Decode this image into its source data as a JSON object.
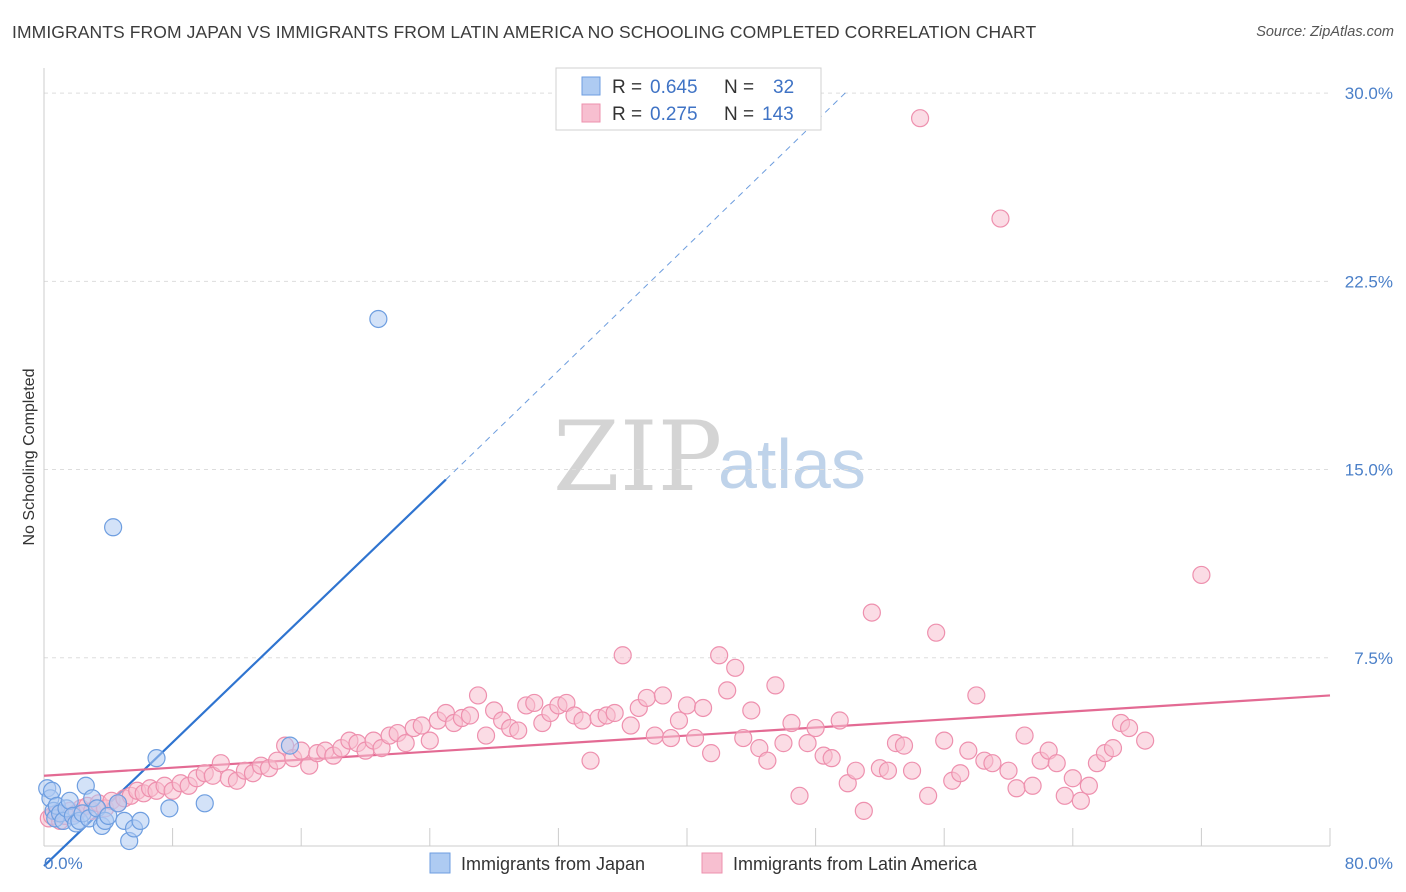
{
  "header": {
    "title": "IMMIGRANTS FROM JAPAN VS IMMIGRANTS FROM LATIN AMERICA NO SCHOOLING COMPLETED CORRELATION CHART",
    "source": "Source: ZipAtlas.com"
  },
  "colors": {
    "japan_fill": "#aecbf2",
    "japan_stroke": "#6e9ee0",
    "japan_line": "#2f74d0",
    "latam_fill": "#f7bfd0",
    "latam_stroke": "#ee90ae",
    "latam_line": "#e36a93",
    "tick_text": "#4a7fc8",
    "grid": "#dddddd"
  },
  "legend": {
    "rows": [
      {
        "r_label": "R =",
        "r_value": "0.645",
        "n_label": "N =",
        "n_value": "32"
      },
      {
        "r_label": "R =",
        "r_value": "0.275",
        "n_label": "N =",
        "n_value": "143"
      }
    ]
  },
  "watermark": {
    "zip": "ZIP",
    "atlas": "atlas"
  },
  "bottom_legend": [
    "Immigrants from Japan",
    "Immigrants from Latin America"
  ],
  "chart_data": {
    "type": "scatter",
    "title": "IMMIGRANTS FROM JAPAN VS IMMIGRANTS FROM LATIN AMERICA NO SCHOOLING COMPLETED CORRELATION CHART",
    "xlabel": "",
    "ylabel": "No Schooling Completed",
    "xlim": [
      0,
      80
    ],
    "ylim": [
      0,
      31
    ],
    "x_tick_labels": [
      "0.0%",
      "80.0%"
    ],
    "y_ticks": [
      7.5,
      15.0,
      22.5,
      30.0
    ],
    "y_tick_labels": [
      "7.5%",
      "15.0%",
      "22.5%",
      "30.0%"
    ],
    "series": [
      {
        "name": "Immigrants from Japan",
        "R": 0.645,
        "N": 32,
        "trend": {
          "x0": 0,
          "y0": -0.8,
          "x1": 25,
          "y1": 14.6,
          "dash_x1": 50,
          "dash_y1": 30.1
        },
        "points": [
          [
            0.2,
            2.3
          ],
          [
            0.4,
            1.9
          ],
          [
            0.5,
            2.2
          ],
          [
            0.6,
            1.4
          ],
          [
            0.7,
            1.1
          ],
          [
            0.8,
            1.6
          ],
          [
            1.0,
            1.3
          ],
          [
            1.2,
            1.0
          ],
          [
            1.4,
            1.5
          ],
          [
            1.6,
            1.8
          ],
          [
            1.8,
            1.2
          ],
          [
            2.0,
            0.9
          ],
          [
            2.2,
            1.0
          ],
          [
            2.4,
            1.3
          ],
          [
            2.6,
            2.4
          ],
          [
            2.8,
            1.1
          ],
          [
            3.0,
            1.9
          ],
          [
            3.3,
            1.5
          ],
          [
            3.6,
            0.8
          ],
          [
            3.8,
            1.0
          ],
          [
            4.0,
            1.2
          ],
          [
            4.3,
            12.7
          ],
          [
            4.6,
            1.7
          ],
          [
            5.0,
            1.0
          ],
          [
            5.3,
            0.2
          ],
          [
            5.6,
            0.7
          ],
          [
            6.0,
            1.0
          ],
          [
            7.0,
            3.5
          ],
          [
            7.8,
            1.5
          ],
          [
            10.0,
            1.7
          ],
          [
            15.3,
            4.0
          ],
          [
            20.8,
            21.0
          ]
        ]
      },
      {
        "name": "Immigrants from Latin America",
        "R": 0.275,
        "N": 143,
        "trend": {
          "x0": 0,
          "y0": 2.8,
          "x1": 80,
          "y1": 6.0
        },
        "points": [
          [
            0.3,
            1.1
          ],
          [
            0.5,
            1.2
          ],
          [
            0.8,
            1.3
          ],
          [
            1.0,
            1.0
          ],
          [
            1.3,
            1.2
          ],
          [
            1.6,
            1.4
          ],
          [
            2.0,
            1.3
          ],
          [
            2.3,
            1.5
          ],
          [
            2.7,
            1.6
          ],
          [
            3.0,
            1.4
          ],
          [
            3.4,
            1.7
          ],
          [
            3.8,
            1.5
          ],
          [
            4.2,
            1.8
          ],
          [
            4.6,
            1.7
          ],
          [
            5.0,
            1.9
          ],
          [
            5.4,
            2.0
          ],
          [
            5.8,
            2.2
          ],
          [
            6.2,
            2.1
          ],
          [
            6.6,
            2.3
          ],
          [
            7.0,
            2.2
          ],
          [
            7.5,
            2.4
          ],
          [
            8.0,
            2.2
          ],
          [
            8.5,
            2.5
          ],
          [
            9.0,
            2.4
          ],
          [
            9.5,
            2.7
          ],
          [
            10.0,
            2.9
          ],
          [
            10.5,
            2.8
          ],
          [
            11.0,
            3.3
          ],
          [
            11.5,
            2.7
          ],
          [
            12.0,
            2.6
          ],
          [
            12.5,
            3.0
          ],
          [
            13.0,
            2.9
          ],
          [
            13.5,
            3.2
          ],
          [
            14.0,
            3.1
          ],
          [
            14.5,
            3.4
          ],
          [
            15.0,
            4.0
          ],
          [
            15.5,
            3.5
          ],
          [
            16.0,
            3.8
          ],
          [
            16.5,
            3.2
          ],
          [
            17.0,
            3.7
          ],
          [
            17.5,
            3.8
          ],
          [
            18.0,
            3.6
          ],
          [
            18.5,
            3.9
          ],
          [
            19.0,
            4.2
          ],
          [
            19.5,
            4.1
          ],
          [
            20.0,
            3.8
          ],
          [
            20.5,
            4.2
          ],
          [
            21.0,
            3.9
          ],
          [
            21.5,
            4.4
          ],
          [
            22.0,
            4.5
          ],
          [
            22.5,
            4.1
          ],
          [
            23.0,
            4.7
          ],
          [
            23.5,
            4.8
          ],
          [
            24.0,
            4.2
          ],
          [
            24.5,
            5.0
          ],
          [
            25.0,
            5.3
          ],
          [
            25.5,
            4.9
          ],
          [
            26.0,
            5.1
          ],
          [
            26.5,
            5.2
          ],
          [
            27.0,
            6.0
          ],
          [
            27.5,
            4.4
          ],
          [
            28.0,
            5.4
          ],
          [
            28.5,
            5.0
          ],
          [
            29.0,
            4.7
          ],
          [
            29.5,
            4.6
          ],
          [
            30.0,
            5.6
          ],
          [
            30.5,
            5.7
          ],
          [
            31.0,
            4.9
          ],
          [
            31.5,
            5.3
          ],
          [
            32.0,
            5.6
          ],
          [
            32.5,
            5.7
          ],
          [
            33.0,
            5.2
          ],
          [
            33.5,
            5.0
          ],
          [
            34.0,
            3.4
          ],
          [
            34.5,
            5.1
          ],
          [
            35.0,
            5.2
          ],
          [
            35.5,
            5.3
          ],
          [
            36.0,
            7.6
          ],
          [
            36.5,
            4.8
          ],
          [
            37.0,
            5.5
          ],
          [
            37.5,
            5.9
          ],
          [
            38.0,
            4.4
          ],
          [
            38.5,
            6.0
          ],
          [
            39.0,
            4.3
          ],
          [
            39.5,
            5.0
          ],
          [
            40.0,
            5.6
          ],
          [
            40.5,
            4.3
          ],
          [
            41.0,
            5.5
          ],
          [
            41.5,
            3.7
          ],
          [
            42.0,
            7.6
          ],
          [
            42.5,
            6.2
          ],
          [
            43.0,
            7.1
          ],
          [
            43.5,
            4.3
          ],
          [
            44.0,
            5.4
          ],
          [
            44.5,
            3.9
          ],
          [
            45.0,
            3.4
          ],
          [
            45.5,
            6.4
          ],
          [
            46.0,
            4.1
          ],
          [
            46.5,
            4.9
          ],
          [
            47.0,
            2.0
          ],
          [
            47.5,
            4.1
          ],
          [
            48.0,
            4.7
          ],
          [
            48.5,
            3.6
          ],
          [
            49.0,
            3.5
          ],
          [
            49.5,
            5.0
          ],
          [
            50.0,
            2.5
          ],
          [
            50.5,
            3.0
          ],
          [
            51.0,
            1.4
          ],
          [
            51.5,
            9.3
          ],
          [
            52.0,
            3.1
          ],
          [
            52.5,
            3.0
          ],
          [
            53.0,
            4.1
          ],
          [
            53.5,
            4.0
          ],
          [
            54.0,
            3.0
          ],
          [
            54.5,
            29.0
          ],
          [
            55.0,
            2.0
          ],
          [
            55.5,
            8.5
          ],
          [
            56.0,
            4.2
          ],
          [
            56.5,
            2.6
          ],
          [
            57.0,
            2.9
          ],
          [
            57.5,
            3.8
          ],
          [
            58.0,
            6.0
          ],
          [
            58.5,
            3.4
          ],
          [
            59.0,
            3.3
          ],
          [
            59.5,
            25.0
          ],
          [
            60.0,
            3.0
          ],
          [
            60.5,
            2.3
          ],
          [
            61.0,
            4.4
          ],
          [
            61.5,
            2.4
          ],
          [
            62.0,
            3.4
          ],
          [
            62.5,
            3.8
          ],
          [
            63.0,
            3.3
          ],
          [
            63.5,
            2.0
          ],
          [
            64.0,
            2.7
          ],
          [
            64.5,
            1.8
          ],
          [
            65.0,
            2.4
          ],
          [
            65.5,
            3.3
          ],
          [
            66.0,
            3.7
          ],
          [
            66.5,
            3.9
          ],
          [
            67.0,
            4.9
          ],
          [
            67.5,
            4.7
          ],
          [
            68.5,
            4.2
          ],
          [
            72.0,
            10.8
          ]
        ]
      }
    ]
  }
}
